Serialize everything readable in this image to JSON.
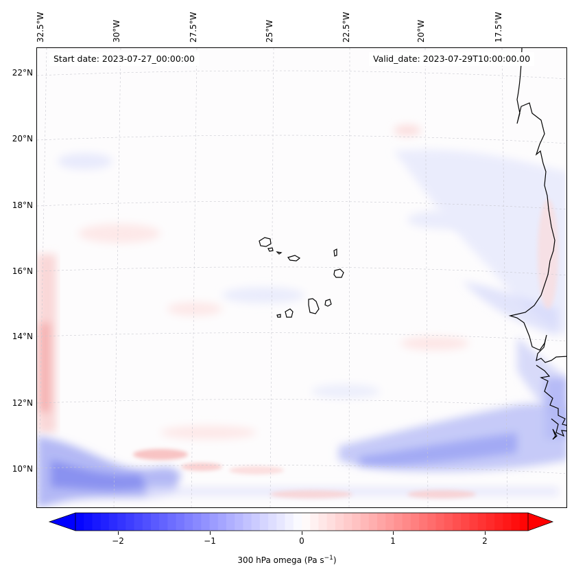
{
  "header": {
    "start_date": "Start date: 2023-07-27_00:00:00",
    "valid_date": "Valid_date: 2023-07-29T10:00:00.00"
  },
  "axes": {
    "longitude_labels": [
      "32.5°W",
      "30°W",
      "27.5°W",
      "25°W",
      "22.5°W",
      "20°W",
      "17.5°W"
    ],
    "latitude_labels": [
      "22°N",
      "20°N",
      "18°N",
      "16°N",
      "14°N",
      "12°N",
      "10°N"
    ]
  },
  "map": {
    "field": "300 hPa omega",
    "features": [
      "cabo-verde-islands",
      "west-africa-coastline"
    ]
  },
  "colorbar": {
    "ticks": [
      "−2",
      "−1",
      "0",
      "1",
      "2"
    ],
    "label_main": "300 hPa omega (Pa s",
    "label_exp": "−1",
    "label_close": ")",
    "range": [
      -2.7,
      2.7
    ],
    "colors": {
      "min": "#0000ff",
      "mid": "#ffffff",
      "max": "#ff0000"
    }
  }
}
